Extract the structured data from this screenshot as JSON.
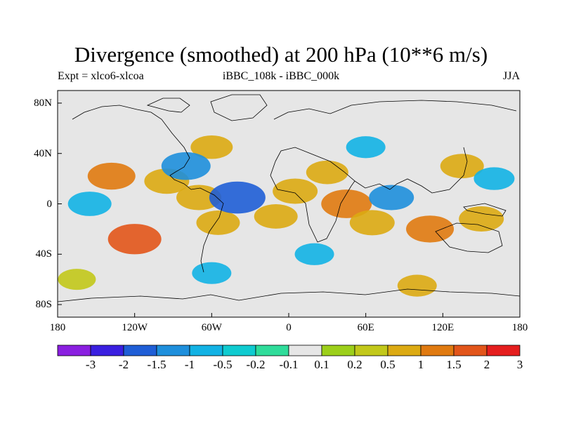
{
  "title": "Divergence (smoothed) at 200 hPa (10**6 m/s)",
  "left_label": "Expt = xlco6-xlcoa",
  "center_label": "iBBC_108k - iBBC_000k",
  "right_label": "JJA",
  "lat_ticks": [
    "80N",
    "40N",
    "0",
    "40S",
    "80S"
  ],
  "lon_ticks": [
    "180",
    "120W",
    "60W",
    "0",
    "60E",
    "120E",
    "180"
  ],
  "colorbar": {
    "labels": [
      "-3",
      "-2",
      "-1.5",
      "-1",
      "-0.5",
      "-0.2",
      "-0.1",
      "0.1",
      "0.2",
      "0.5",
      "1",
      "1.5",
      "2",
      "3"
    ],
    "colors": [
      "#8a1fe0",
      "#3a1fe0",
      "#1f5ed6",
      "#1e8fdc",
      "#12b2e4",
      "#0fcbd0",
      "#2fdc9a",
      "#e6e6e6",
      "#9ccf1a",
      "#c2c81a",
      "#dcaa12",
      "#e07a10",
      "#e2551a",
      "#e51e1e"
    ]
  },
  "chart_data": {
    "type": "heatmap",
    "title": "Divergence (smoothed) at 200 hPa (10**6 m/s)",
    "variable": "divergence",
    "level": "200 hPa",
    "season": "JJA",
    "x_range": [
      -180,
      180
    ],
    "y_range": [
      -90,
      90
    ],
    "anomalies": [
      {
        "lon": -138,
        "lat": 22,
        "value": 1.2
      },
      {
        "lon": -120,
        "lat": -28,
        "value": 1.6
      },
      {
        "lon": -95,
        "lat": 18,
        "value": 1.0
      },
      {
        "lon": -70,
        "lat": 5,
        "value": 1.0
      },
      {
        "lon": -55,
        "lat": -15,
        "value": 0.9
      },
      {
        "lon": -60,
        "lat": 45,
        "value": 0.8
      },
      {
        "lon": -40,
        "lat": 5,
        "value": -1.8
      },
      {
        "lon": -80,
        "lat": 30,
        "value": -1.3
      },
      {
        "lon": -155,
        "lat": 0,
        "value": -0.9
      },
      {
        "lon": -10,
        "lat": -10,
        "value": 0.9
      },
      {
        "lon": 5,
        "lat": 10,
        "value": 1.0
      },
      {
        "lon": 30,
        "lat": 25,
        "value": 0.8
      },
      {
        "lon": 45,
        "lat": 0,
        "value": 1.4
      },
      {
        "lon": 65,
        "lat": -15,
        "value": 1.0
      },
      {
        "lon": 80,
        "lat": 5,
        "value": -1.0
      },
      {
        "lon": 110,
        "lat": -20,
        "value": 1.2
      },
      {
        "lon": 150,
        "lat": -12,
        "value": 1.0
      },
      {
        "lon": 135,
        "lat": 30,
        "value": 0.9
      },
      {
        "lon": 160,
        "lat": 20,
        "value": -0.7
      },
      {
        "lon": 20,
        "lat": -40,
        "value": -0.6
      },
      {
        "lon": -165,
        "lat": -60,
        "value": 0.5
      },
      {
        "lon": 100,
        "lat": -65,
        "value": 0.6
      },
      {
        "lon": -60,
        "lat": -55,
        "value": -0.6
      },
      {
        "lon": 60,
        "lat": 45,
        "value": -0.6
      }
    ]
  }
}
